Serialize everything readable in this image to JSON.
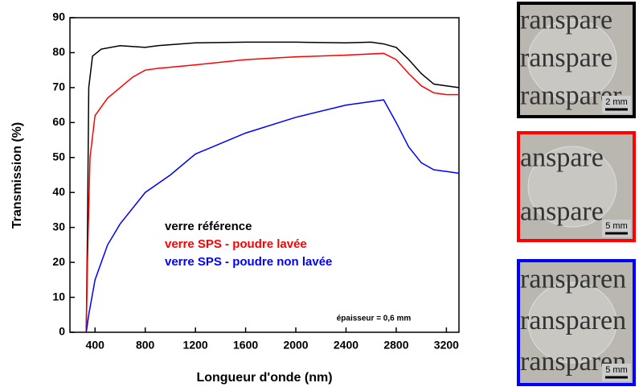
{
  "chart_data": {
    "type": "line",
    "y_label": "Transmission (%)",
    "x_label": "Longueur d'onde (nm)",
    "annotation": "épaisseur = 0,6 mm",
    "xlim": [
      200,
      3300
    ],
    "xticks": [
      400,
      800,
      1200,
      1600,
      2000,
      2400,
      2800,
      3200
    ],
    "ylim": [
      0,
      90
    ],
    "yticks": [
      0,
      10,
      20,
      30,
      40,
      50,
      60,
      70,
      80,
      90
    ],
    "series": [
      {
        "name": "verre référence",
        "color": "#000000",
        "x": [
          330,
          340,
          350,
          380,
          450,
          600,
          800,
          900,
          1200,
          1600,
          2000,
          2400,
          2600,
          2700,
          2800,
          2900,
          3000,
          3100,
          3200,
          3300
        ],
        "values": [
          0,
          30,
          70,
          79,
          81,
          82,
          81.5,
          82,
          82.8,
          83,
          83,
          82.8,
          83,
          82.5,
          81.5,
          78,
          74,
          71,
          70.5,
          70
        ]
      },
      {
        "name": "verre SPS - poudre lavée",
        "color": "#ff0000",
        "x": [
          330,
          340,
          360,
          400,
          500,
          600,
          700,
          800,
          900,
          1200,
          1600,
          2000,
          2400,
          2700,
          2800,
          2900,
          3000,
          3100,
          3200,
          3300
        ],
        "values": [
          0,
          20,
          50,
          62,
          67,
          70,
          73,
          75,
          75.5,
          76.5,
          78,
          78.8,
          79.3,
          79.8,
          78,
          74,
          70.5,
          68.5,
          68,
          68
        ]
      },
      {
        "name": "verre SPS - poudre non lavée",
        "color": "#0000ff",
        "x": [
          330,
          350,
          400,
          500,
          600,
          800,
          1000,
          1200,
          1600,
          2000,
          2400,
          2700,
          2800,
          2900,
          3000,
          3100,
          3200,
          3300
        ],
        "values": [
          0,
          5,
          15,
          25,
          31,
          40,
          45,
          51,
          57,
          61.5,
          65,
          66.5,
          60,
          53,
          48.5,
          46.5,
          46,
          45.5
        ]
      }
    ]
  },
  "photos": [
    {
      "frame_color": "#000000",
      "text_lines": [
        "ranspare",
        "ranspare",
        "ransparer"
      ],
      "scale_label": "2 mm"
    },
    {
      "frame_color": "#ff0000",
      "text_lines": [
        "anspare",
        "anspare"
      ],
      "scale_label": "5 mm"
    },
    {
      "frame_color": "#0000ff",
      "text_lines": [
        "ransparen",
        "ransparen",
        "ransparen"
      ],
      "scale_label": "5 mm"
    }
  ]
}
